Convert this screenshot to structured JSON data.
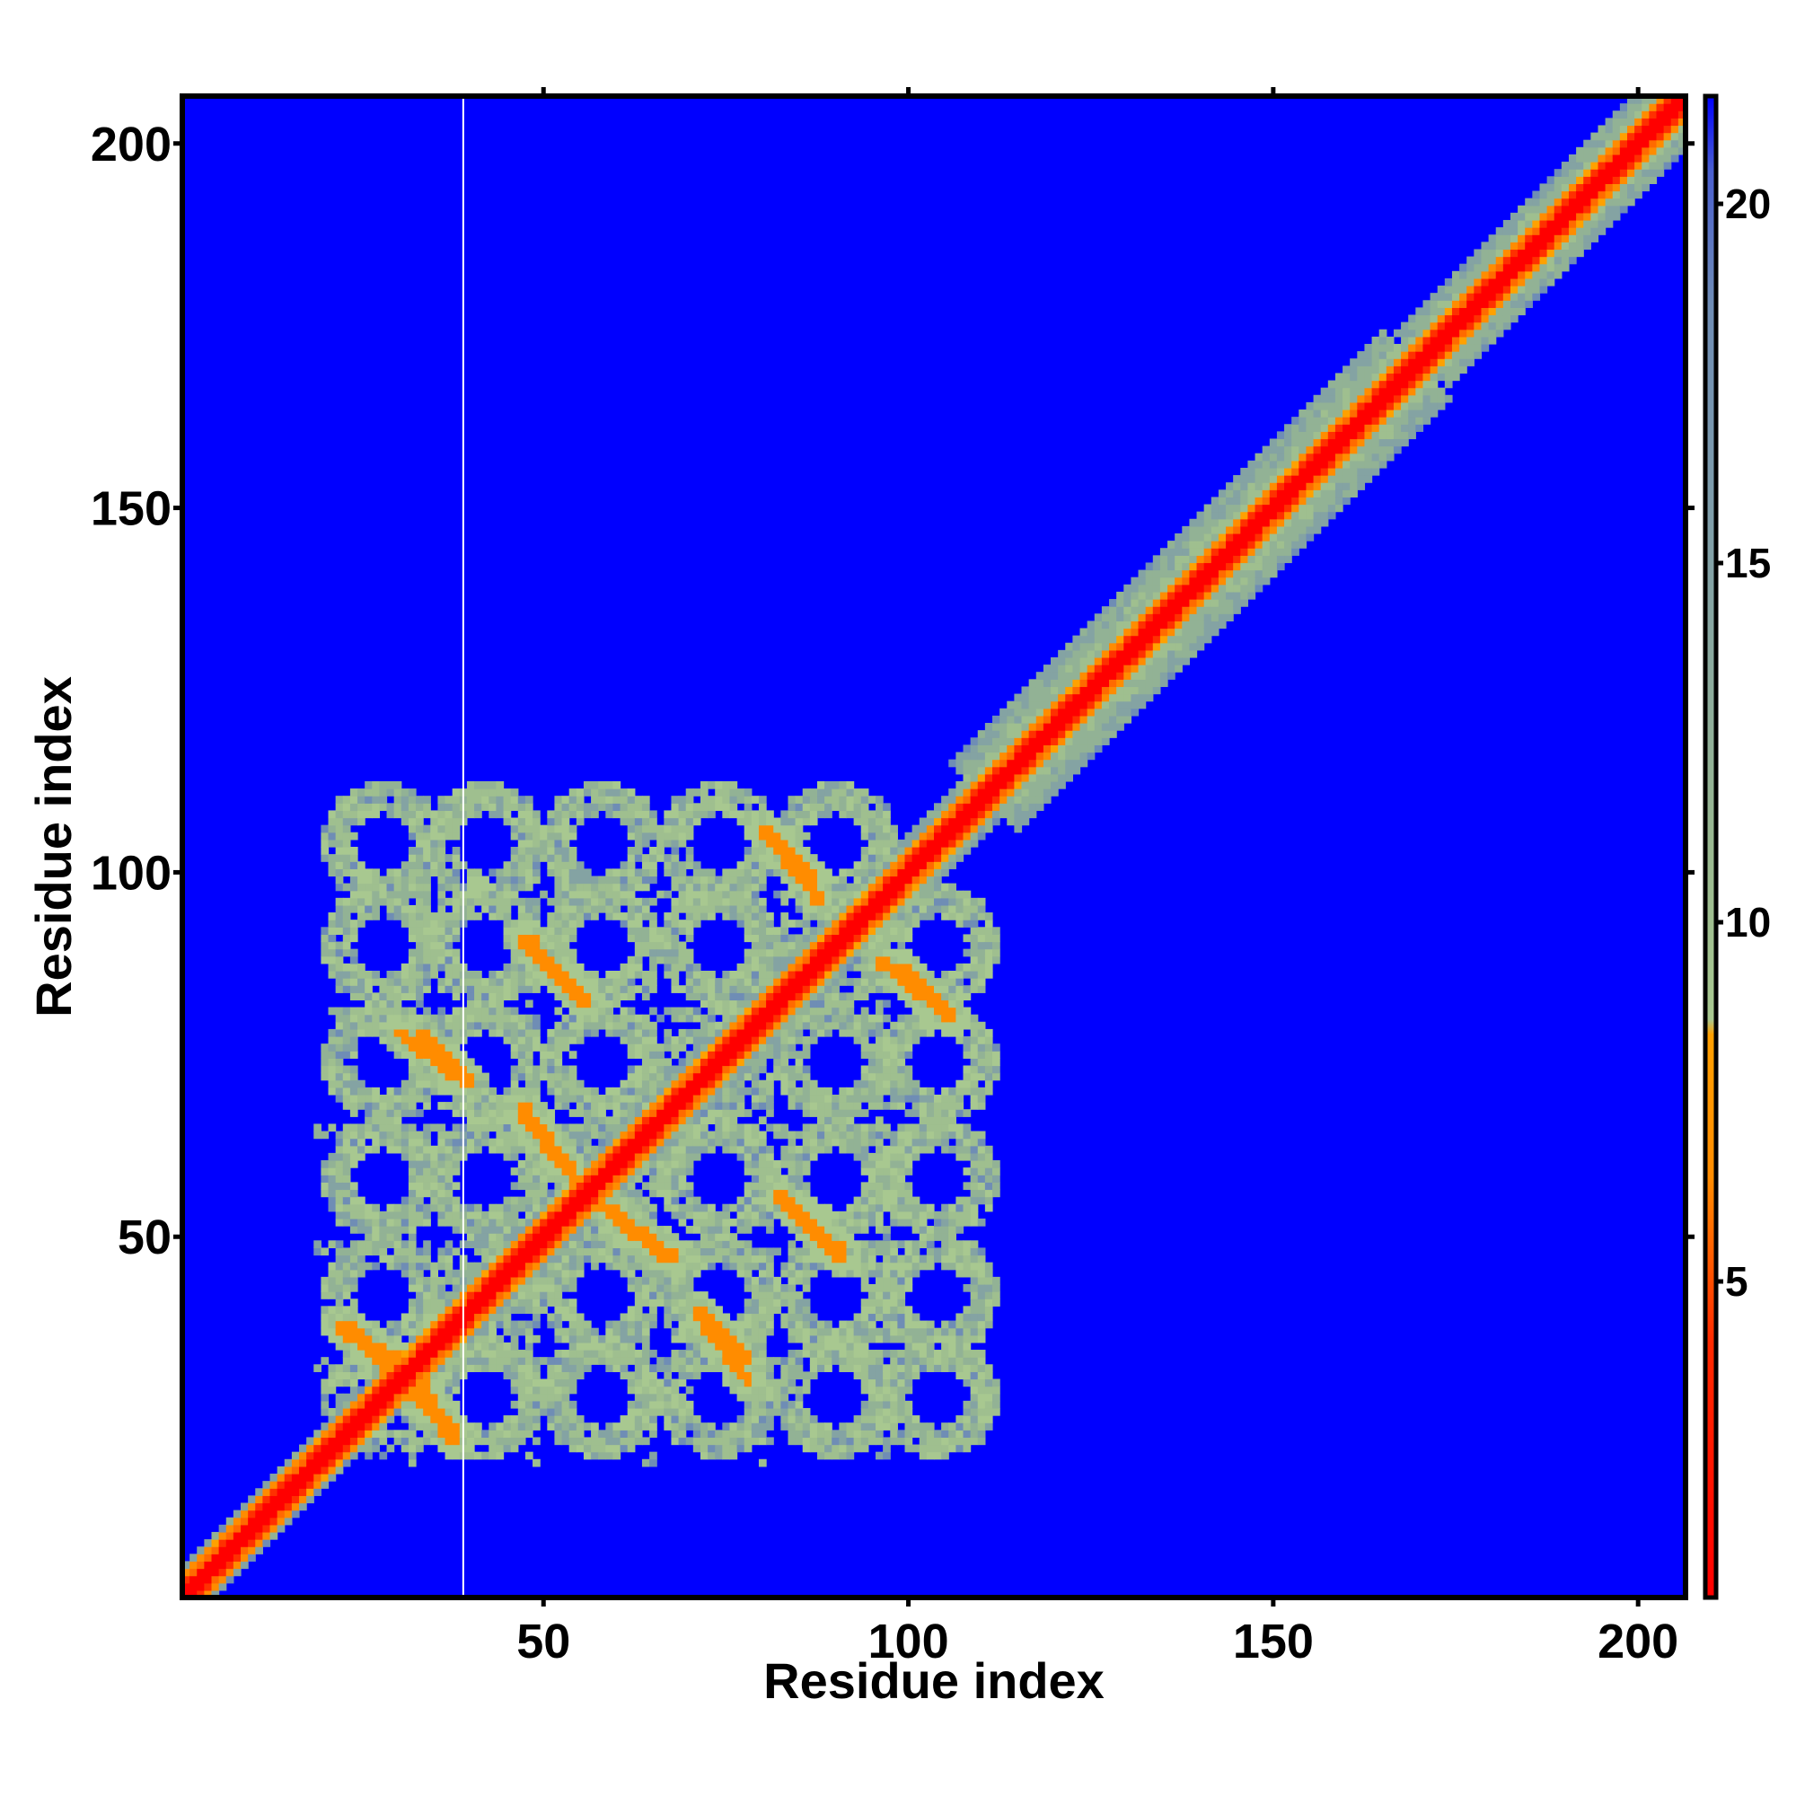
{
  "chart_data": {
    "type": "heatmap",
    "title": "",
    "xlabel": "Residue index",
    "ylabel": "Residue index",
    "n_residues": 206,
    "xlim": [
      1,
      206
    ],
    "ylim": [
      1,
      206
    ],
    "x_ticks": [
      50,
      100,
      150,
      200
    ],
    "y_ticks": [
      50,
      100,
      150,
      200
    ],
    "x_tick_labels": [
      "50",
      "100",
      "150",
      "200"
    ],
    "y_tick_labels": [
      "50",
      "100",
      "150",
      "200"
    ],
    "colorbar": {
      "range": [
        0.6,
        21.5
      ],
      "ticks": [
        5,
        10,
        15,
        20
      ],
      "tick_labels": [
        "5",
        "10",
        "15",
        "20"
      ],
      "colors": {
        "near": "#ff0000",
        "mid": "#ff8c00",
        "light": "#a8c890",
        "steel": "#6f8db5",
        "far": "#0000ff"
      }
    },
    "background_color": "#0000ff",
    "highlight_column_residue": 39,
    "description_features": {
      "diagonal_contacts": "residues 1-206",
      "beta_contacts": [
        {
          "from": [
            23,
            38
          ],
          "to": [
            38,
            22
          ]
        },
        {
          "from": [
            30,
            78
          ],
          "to": [
            38,
            72
          ]
        },
        {
          "from": [
            47,
            91
          ],
          "to": [
            55,
            83
          ]
        },
        {
          "from": [
            47,
            68
          ],
          "to": [
            57,
            55
          ]
        },
        {
          "from": [
            57,
            55
          ],
          "to": [
            67,
            47
          ]
        },
        {
          "from": [
            82,
            56
          ],
          "to": [
            91,
            48
          ]
        },
        {
          "from": [
            71,
            40
          ],
          "to": [
            78,
            33
          ]
        },
        {
          "from": [
            32,
            32
          ],
          "to": [
            38,
            22
          ]
        },
        {
          "from": [
            80,
            106
          ],
          "to": [
            87,
            99
          ]
        },
        {
          "from": [
            96,
            88
          ],
          "to": [
            106,
            80
          ]
        }
      ]
    }
  }
}
